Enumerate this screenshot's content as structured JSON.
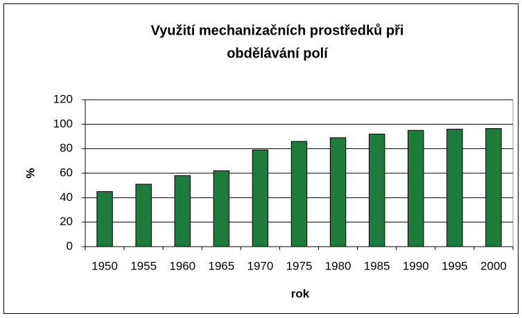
{
  "chart_data": {
    "type": "bar",
    "title": [
      "Využití mechanizačních prostředků při",
      "obdělávání polí"
    ],
    "x_label": "rok",
    "y_label": "%",
    "categories": [
      "1950",
      "1955",
      "1960",
      "1965",
      "1970",
      "1975",
      "1980",
      "1985",
      "1990",
      "1995",
      "2000"
    ],
    "values": [
      45,
      51,
      58,
      62,
      79,
      86,
      89,
      92,
      95,
      96,
      96.5
    ],
    "color": "#1e7b3e",
    "ylim": [
      0,
      120
    ],
    "yticks": [
      0,
      20,
      40,
      60,
      80,
      100,
      120
    ],
    "grid": true
  }
}
